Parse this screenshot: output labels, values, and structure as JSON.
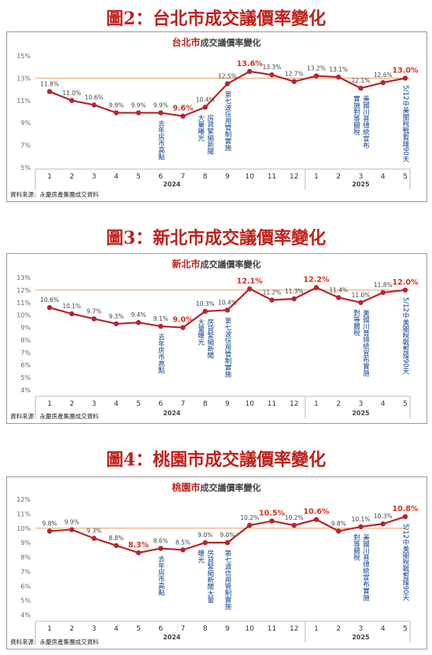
{
  "charts": [
    {
      "heading": "圖2：台北市成交議價率變化",
      "chart_title_main": "台北市",
      "chart_title_rest": "成交議價率變化",
      "source": "資料來源：永慶房產集團成交資料"
    },
    {
      "heading": "圖3：新北市成交議價率變化",
      "chart_title_main": "新北市",
      "chart_title_rest": "成交議價率變化",
      "source": "資料來源：永慶房產集團成交資料"
    },
    {
      "heading": "圖4：桃園市成交議價率變化",
      "chart_title_main": "桃園市",
      "chart_title_rest": "成交議價率變化",
      "source": "資料來源：永慶房產集團成交資料"
    }
  ],
  "chart_data": [
    {
      "type": "line",
      "title": "台北市成交議價率變化",
      "x": [
        "1",
        "2",
        "3",
        "4",
        "5",
        "6",
        "7",
        "8",
        "9",
        "10",
        "11",
        "12",
        "1",
        "2",
        "3",
        "4",
        "5"
      ],
      "x_groups": [
        "2024",
        "2025"
      ],
      "ylim": [
        5,
        15
      ],
      "y_ticks": [
        "5%",
        "7%",
        "9%",
        "11%",
        "13%",
        "15%"
      ],
      "reference_line": 13.0,
      "values": [
        11.8,
        11.0,
        10.6,
        9.9,
        9.9,
        9.9,
        9.6,
        10.4,
        12.5,
        13.6,
        13.3,
        12.7,
        13.2,
        13.1,
        12.1,
        12.6,
        13.0
      ],
      "labels": [
        "11.8%",
        "11.0%",
        "10.6%",
        "9.9%",
        "9.9%",
        "9.9%",
        "9.6%",
        "10.4%",
        "12.5%",
        "13.6%",
        "13.3%",
        "12.7%",
        "13.2%",
        "13.1%",
        "12.1%",
        "12.6%",
        "13.0%"
      ],
      "highlight": [
        6,
        9,
        16
      ],
      "annotations": [
        {
          "index": 5,
          "text": "去年房市高點"
        },
        {
          "index": 7,
          "text": "大量曝光"
        },
        {
          "index": 7,
          "text": "房貸緊縮新聞"
        },
        {
          "index": 8,
          "text": "第七波信用管制實施"
        },
        {
          "index": 14,
          "text": "實施對等關稅"
        },
        {
          "index": 14,
          "text": "美國川普總統宣布"
        },
        {
          "index": 16,
          "text": "5/12中美關稅戰暫緩90天"
        }
      ],
      "grid": false
    },
    {
      "type": "line",
      "title": "新北市成交議價率變化",
      "x": [
        "1",
        "2",
        "3",
        "4",
        "5",
        "6",
        "7",
        "8",
        "9",
        "10",
        "11",
        "12",
        "1",
        "2",
        "3",
        "4",
        "5"
      ],
      "x_groups": [
        "2024",
        "2025"
      ],
      "ylim": [
        4,
        13
      ],
      "y_ticks": [
        "4%",
        "5%",
        "6%",
        "7%",
        "8%",
        "9%",
        "10%",
        "11%",
        "12%",
        "13%"
      ],
      "reference_line": 12.0,
      "values": [
        10.6,
        10.1,
        9.7,
        9.3,
        9.4,
        9.1,
        9.0,
        10.3,
        10.4,
        12.1,
        11.2,
        11.3,
        12.2,
        11.4,
        11.0,
        11.8,
        12.0
      ],
      "labels": [
        "10.6%",
        "10.1%",
        "9.7%",
        "9.3%",
        "9.4%",
        "9.1%",
        "9.0%",
        "10.3%",
        "10.4%",
        "12.1%",
        "11.2%",
        "11.3%",
        "12.2%",
        "11.4%",
        "11.0%",
        "11.8%",
        "12.0%"
      ],
      "highlight": [
        6,
        9,
        12,
        16
      ],
      "annotations": [
        {
          "index": 5,
          "text": "去年房市高點"
        },
        {
          "index": 7,
          "text": "大量曝光"
        },
        {
          "index": 7,
          "text": "房貸緊縮新聞"
        },
        {
          "index": 8,
          "text": "第七波信用管制實施"
        },
        {
          "index": 14,
          "text": "對等關稅"
        },
        {
          "index": 14,
          "text": "美國川普總統宣布實施"
        },
        {
          "index": 16,
          "text": "5/12中美關稅戰暫緩90天"
        }
      ],
      "grid": false
    },
    {
      "type": "line",
      "title": "桃園市成交議價率變化",
      "x": [
        "1",
        "2",
        "3",
        "4",
        "5",
        "6",
        "7",
        "8",
        "9",
        "10",
        "11",
        "12",
        "1",
        "2",
        "3",
        "4",
        "5"
      ],
      "x_groups": [
        "2024",
        "2025"
      ],
      "ylim": [
        4,
        12
      ],
      "y_ticks": [
        "4%",
        "5%",
        "6%",
        "7%",
        "8%",
        "9%",
        "10%",
        "11%",
        "12%"
      ],
      "reference_line": 10.0,
      "values": [
        9.8,
        9.9,
        9.3,
        8.8,
        8.3,
        8.6,
        8.5,
        9.0,
        9.0,
        10.2,
        10.5,
        10.2,
        10.6,
        9.8,
        10.1,
        10.3,
        10.8
      ],
      "labels": [
        "9.8%",
        "9.9%",
        "9.3%",
        "8.8%",
        "8.3%",
        "8.6%",
        "8.5%",
        "9.0%",
        "9.0%",
        "10.2%",
        "10.5%",
        "10.2%",
        "10.6%",
        "9.8%",
        "10.1%",
        "10.3%",
        "10.8%"
      ],
      "highlight": [
        4,
        10,
        12,
        16
      ],
      "annotations": [
        {
          "index": 5,
          "text": "去年房市高點"
        },
        {
          "index": 7,
          "text": "曝光"
        },
        {
          "index": 7,
          "text": "房貸緊縮新聞大量"
        },
        {
          "index": 8,
          "text": "第七波信用管制實施"
        },
        {
          "index": 14,
          "text": "對等關稅"
        },
        {
          "index": 14,
          "text": "美國川普總統宣布實施"
        },
        {
          "index": 16,
          "text": "5/12中美關稅戰暫緩90天"
        }
      ],
      "grid": false
    }
  ],
  "colors": {
    "line": "#b5272d",
    "reference_line": "#e8a262",
    "highlight_label": "#d8311c",
    "annotation": "#0d3d8e",
    "heading": "#c0211b"
  }
}
